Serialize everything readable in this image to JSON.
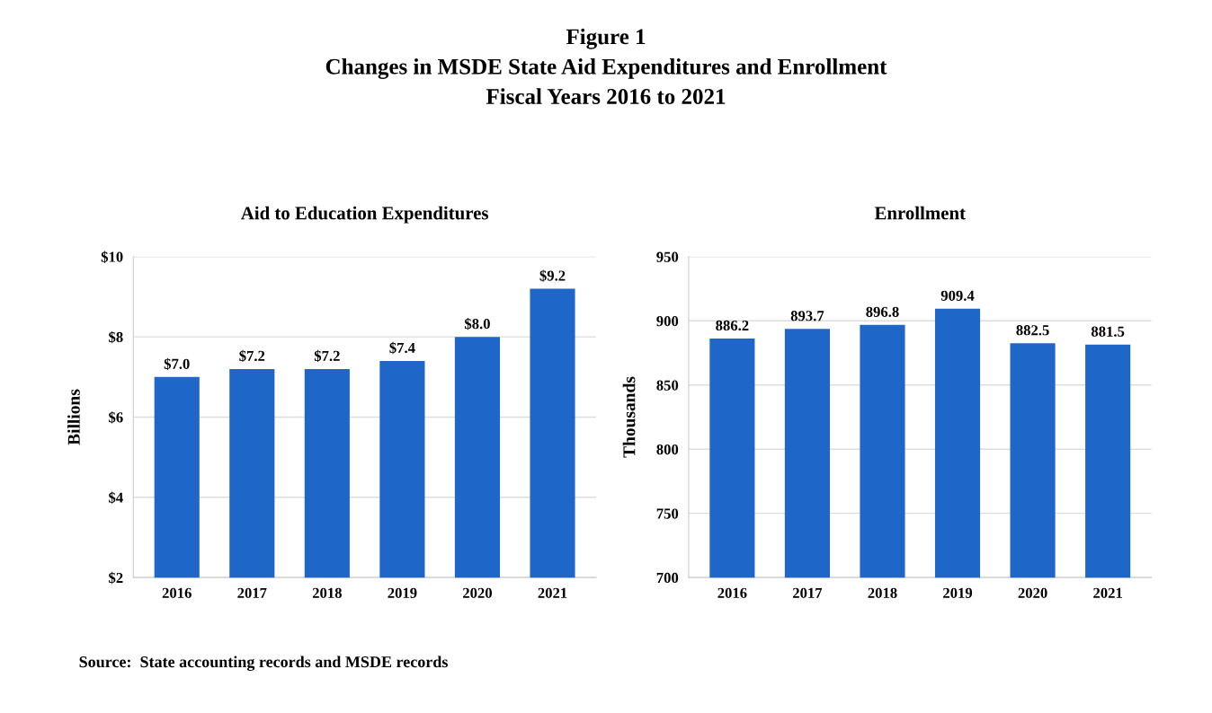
{
  "chart_data": [
    {
      "type": "bar",
      "title": "Aid to Education Expenditures",
      "ylabel": "Billions",
      "categories": [
        "2016",
        "2017",
        "2018",
        "2019",
        "2020",
        "2021"
      ],
      "series": [
        {
          "color": "#1f66c9",
          "values": [
            7.0,
            7.2,
            7.2,
            7.4,
            8.0,
            9.2
          ],
          "value_labels": [
            "$7.0",
            "$7.2",
            "$7.2",
            "$7.4",
            "$8.0",
            "$9.2"
          ]
        }
      ],
      "ylim": [
        2,
        10
      ],
      "yticks": [
        {
          "value": 2,
          "label": "$2"
        },
        {
          "value": 4,
          "label": "$4"
        },
        {
          "value": 6,
          "label": "$6"
        },
        {
          "value": 8,
          "label": "$8"
        },
        {
          "value": 10,
          "label": "$10"
        }
      ],
      "grid": "y",
      "annotations": [
        "Figure 1\nChanges in MSDE State Aid Expenditures and Enrollment\nFiscal Years 2016 to 2021",
        "Source:  State accounting records and MSDE records"
      ]
    },
    {
      "type": "bar",
      "title": "Enrollment",
      "ylabel": "Thousands",
      "categories": [
        "2016",
        "2017",
        "2018",
        "2019",
        "2020",
        "2021"
      ],
      "series": [
        {
          "color": "#1f66c9",
          "values": [
            886.2,
            893.7,
            896.8,
            909.4,
            882.5,
            881.5
          ]
        }
      ],
      "data_labels": true,
      "ylim": [
        700,
        950
      ],
      "yticks": [
        700,
        750,
        800,
        850,
        900,
        950
      ],
      "grid": "y"
    }
  ]
}
